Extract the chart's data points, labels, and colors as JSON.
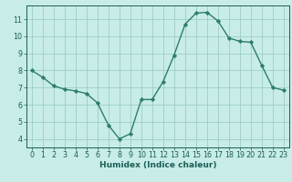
{
  "x": [
    0,
    1,
    2,
    3,
    4,
    5,
    6,
    7,
    8,
    9,
    10,
    11,
    12,
    13,
    14,
    15,
    16,
    17,
    18,
    19,
    20,
    21,
    22,
    23
  ],
  "y": [
    8.0,
    7.6,
    7.1,
    6.9,
    6.8,
    6.65,
    6.1,
    4.8,
    4.0,
    4.3,
    6.3,
    6.3,
    7.35,
    8.9,
    10.7,
    11.35,
    11.4,
    10.9,
    9.9,
    9.7,
    9.65,
    8.3,
    7.0,
    6.85
  ],
  "line_color": "#2d7d6e",
  "marker": "D",
  "marker_size": 2.2,
  "bg_color": "#c8ece8",
  "grid_color": "#9ecec8",
  "axis_color": "#1a5f55",
  "tick_color": "#1a5f55",
  "xlabel": "Humidex (Indice chaleur)",
  "xlim": [
    -0.5,
    23.5
  ],
  "ylim": [
    3.5,
    11.8
  ],
  "yticks": [
    4,
    5,
    6,
    7,
    8,
    9,
    10,
    11
  ],
  "xticks": [
    0,
    1,
    2,
    3,
    4,
    5,
    6,
    7,
    8,
    9,
    10,
    11,
    12,
    13,
    14,
    15,
    16,
    17,
    18,
    19,
    20,
    21,
    22,
    23
  ],
  "xlabel_fontsize": 6.5,
  "tick_fontsize": 5.8,
  "line_width": 1.0
}
